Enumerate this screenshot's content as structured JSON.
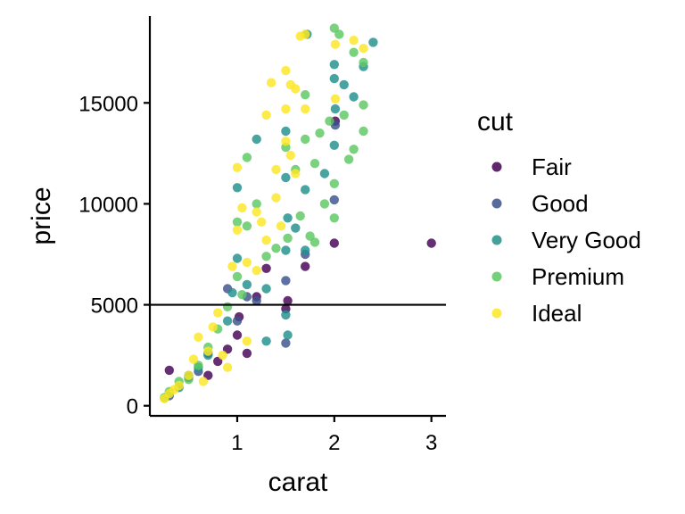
{
  "chart_data": {
    "type": "scatter",
    "xlabel": "carat",
    "ylabel": "price",
    "xlim": [
      0.1,
      3.15
    ],
    "ylim": [
      -500,
      19300
    ],
    "xticks": [
      1,
      2,
      3
    ],
    "yticks": [
      0,
      5000,
      10000,
      15000
    ],
    "xtick_labels": [
      "1",
      "2",
      "3"
    ],
    "ytick_labels": [
      "0",
      "5000",
      "10000",
      "15000"
    ],
    "hline": 5000,
    "grid": false,
    "legend": {
      "title": "cut",
      "placement": "right",
      "entries": [
        {
          "label": "Fair",
          "color": "#440154"
        },
        {
          "label": "Good",
          "color": "#3B528B"
        },
        {
          "label": "Very Good",
          "color": "#21908C"
        },
        {
          "label": "Premium",
          "color": "#5DC863"
        },
        {
          "label": "Ideal",
          "color": "#FDE725"
        }
      ]
    },
    "series": [
      {
        "name": "Fair",
        "color": "#440154",
        "points": [
          [
            0.3,
            1760
          ],
          [
            0.7,
            1500
          ],
          [
            0.9,
            2800
          ],
          [
            1.0,
            3500
          ],
          [
            1.02,
            4400
          ],
          [
            1.1,
            2600
          ],
          [
            1.2,
            5400
          ],
          [
            1.3,
            6800
          ],
          [
            1.5,
            4800
          ],
          [
            1.52,
            5200
          ],
          [
            2.01,
            14100
          ],
          [
            2.0,
            8050
          ],
          [
            3.0,
            8050
          ],
          [
            1.7,
            6900
          ],
          [
            0.8,
            2200
          ]
        ]
      },
      {
        "name": "Good",
        "color": "#3B528B",
        "points": [
          [
            0.3,
            500
          ],
          [
            0.5,
            1400
          ],
          [
            0.7,
            2600
          ],
          [
            0.9,
            5800
          ],
          [
            1.0,
            4200
          ],
          [
            1.1,
            5400
          ],
          [
            1.2,
            5200
          ],
          [
            1.5,
            3100
          ],
          [
            1.5,
            6200
          ],
          [
            2.0,
            10200
          ],
          [
            2.01,
            13900
          ],
          [
            1.7,
            7500
          ],
          [
            0.6,
            1700
          ]
        ]
      },
      {
        "name": "Very Good",
        "color": "#21908C",
        "points": [
          [
            0.3,
            600
          ],
          [
            0.4,
            900
          ],
          [
            0.5,
            1500
          ],
          [
            0.6,
            1900
          ],
          [
            0.7,
            2500
          ],
          [
            0.9,
            4200
          ],
          [
            0.95,
            5600
          ],
          [
            1.0,
            10800
          ],
          [
            1.0,
            7300
          ],
          [
            1.1,
            6000
          ],
          [
            1.2,
            13200
          ],
          [
            1.3,
            5800
          ],
          [
            1.5,
            13600
          ],
          [
            1.5,
            11300
          ],
          [
            1.5,
            7700
          ],
          [
            1.5,
            4500
          ],
          [
            1.52,
            9300
          ],
          [
            1.6,
            8800
          ],
          [
            1.7,
            10700
          ],
          [
            1.7,
            7700
          ],
          [
            1.52,
            3500
          ],
          [
            1.72,
            18400
          ],
          [
            2.0,
            16900
          ],
          [
            2.0,
            16200
          ],
          [
            2.01,
            14700
          ],
          [
            2.0,
            12900
          ],
          [
            2.1,
            15900
          ],
          [
            2.4,
            18000
          ],
          [
            2.2,
            15300
          ],
          [
            2.3,
            16800
          ],
          [
            1.9,
            11500
          ],
          [
            1.3,
            3200
          ]
        ]
      },
      {
        "name": "Premium",
        "color": "#5DC863",
        "points": [
          [
            0.25,
            400
          ],
          [
            0.3,
            700
          ],
          [
            0.4,
            1200
          ],
          [
            0.5,
            1300
          ],
          [
            0.6,
            2000
          ],
          [
            0.7,
            2900
          ],
          [
            0.8,
            3800
          ],
          [
            0.9,
            4900
          ],
          [
            1.0,
            6400
          ],
          [
            1.0,
            9100
          ],
          [
            1.05,
            5500
          ],
          [
            1.1,
            8900
          ],
          [
            1.1,
            12300
          ],
          [
            1.2,
            10000
          ],
          [
            1.3,
            7400
          ],
          [
            1.4,
            7800
          ],
          [
            1.5,
            12800
          ],
          [
            1.52,
            8300
          ],
          [
            1.6,
            11700
          ],
          [
            1.7,
            13200
          ],
          [
            1.7,
            15400
          ],
          [
            1.8,
            8100
          ],
          [
            1.8,
            12000
          ],
          [
            2.0,
            11000
          ],
          [
            2.0,
            9300
          ],
          [
            2.0,
            18700
          ],
          [
            2.05,
            18400
          ],
          [
            2.2,
            17500
          ],
          [
            2.3,
            17000
          ],
          [
            2.2,
            12700
          ],
          [
            2.3,
            13600
          ],
          [
            2.3,
            14900
          ],
          [
            2.1,
            14400
          ],
          [
            1.9,
            10000
          ],
          [
            1.85,
            13500
          ],
          [
            1.75,
            8400
          ],
          [
            1.65,
            9400
          ],
          [
            1.95,
            14100
          ],
          [
            2.15,
            12200
          ]
        ]
      },
      {
        "name": "Ideal",
        "color": "#FDE725",
        "points": [
          [
            0.25,
            350
          ],
          [
            0.3,
            600
          ],
          [
            0.35,
            800
          ],
          [
            0.4,
            1000
          ],
          [
            0.5,
            1500
          ],
          [
            0.55,
            2300
          ],
          [
            0.6,
            3400
          ],
          [
            0.7,
            2700
          ],
          [
            0.75,
            3900
          ],
          [
            0.8,
            4600
          ],
          [
            0.9,
            1900
          ],
          [
            0.95,
            6900
          ],
          [
            1.0,
            11800
          ],
          [
            1.0,
            8700
          ],
          [
            1.05,
            9800
          ],
          [
            1.1,
            7100
          ],
          [
            1.2,
            9600
          ],
          [
            1.3,
            14400
          ],
          [
            1.35,
            16000
          ],
          [
            1.4,
            11700
          ],
          [
            1.45,
            8900
          ],
          [
            1.5,
            13100
          ],
          [
            1.5,
            14700
          ],
          [
            1.5,
            16600
          ],
          [
            1.55,
            15900
          ],
          [
            1.6,
            15700
          ],
          [
            1.65,
            18300
          ],
          [
            1.7,
            18400
          ],
          [
            1.7,
            14700
          ],
          [
            1.6,
            11500
          ],
          [
            1.55,
            12400
          ],
          [
            1.3,
            8200
          ],
          [
            1.2,
            6700
          ],
          [
            2.01,
            17900
          ],
          [
            2.01,
            15200
          ],
          [
            2.2,
            18100
          ],
          [
            2.3,
            17700
          ],
          [
            1.4,
            10300
          ],
          [
            1.1,
            3200
          ],
          [
            0.65,
            1200
          ],
          [
            0.85,
            2500
          ],
          [
            1.25,
            9100
          ]
        ]
      }
    ]
  }
}
